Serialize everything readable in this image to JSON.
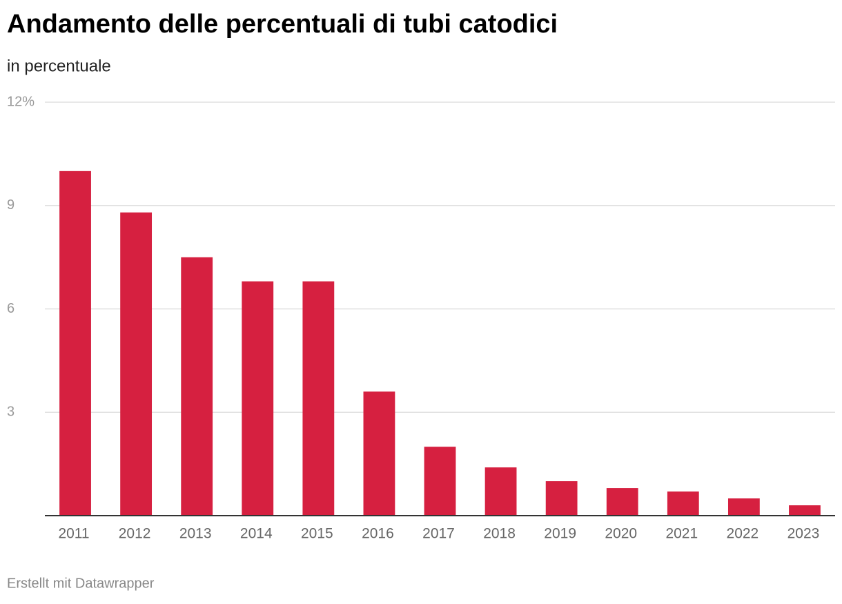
{
  "chart_data": {
    "type": "bar",
    "title": "Andamento delle percentuali di tubi catodici",
    "subtitle": "in percentuale",
    "source": "Erstellt mit Datawrapper",
    "categories": [
      "2011",
      "2012",
      "2013",
      "2014",
      "2015",
      "2016",
      "2017",
      "2018",
      "2019",
      "2020",
      "2021",
      "2022",
      "2023"
    ],
    "values": [
      10.0,
      8.8,
      7.5,
      6.8,
      6.8,
      3.6,
      2.0,
      1.4,
      1.0,
      0.8,
      0.7,
      0.5,
      0.3
    ],
    "color": "#d62040",
    "ylim": [
      0,
      12
    ],
    "yticks": [
      3,
      6,
      9,
      {
        "value": 12,
        "label": "12%"
      }
    ],
    "grid": true
  }
}
